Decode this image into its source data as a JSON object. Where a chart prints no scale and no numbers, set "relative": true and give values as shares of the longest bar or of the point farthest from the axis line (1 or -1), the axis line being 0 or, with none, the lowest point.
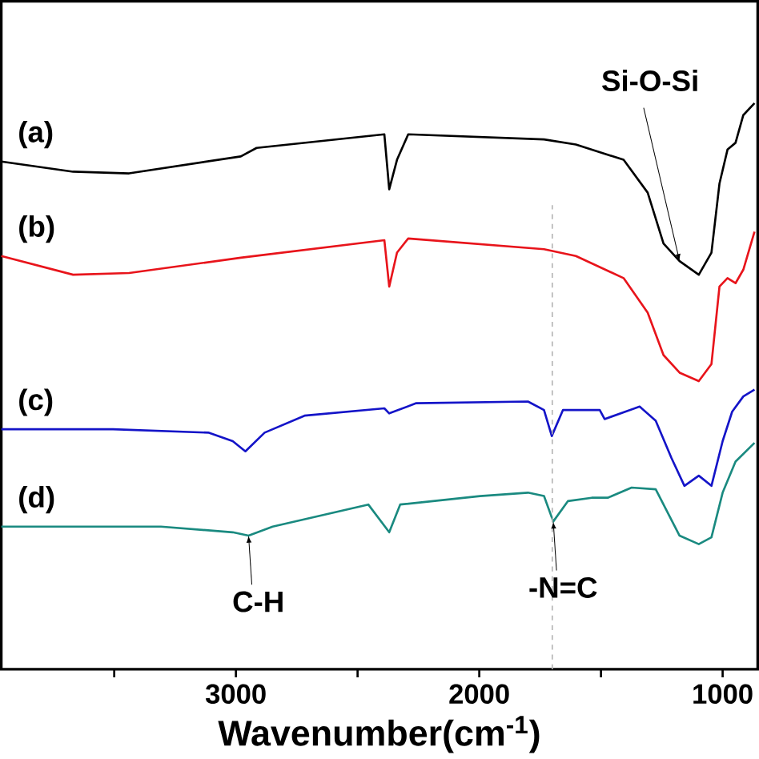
{
  "chart_data": {
    "type": "line",
    "relative": true,
    "xlabel": "Wavenumber(cm$^{-1}$)",
    "xlim": [
      3964,
      856
    ],
    "xticks": [
      3000,
      2000,
      1000,
      {
        "value": 3500,
        "label": null
      },
      {
        "value": 2500,
        "label": null
      },
      {
        "value": 1500,
        "label": null
      }
    ],
    "legend": false,
    "grid": false,
    "marker": "none",
    "line_style": "solid",
    "series": [
      {
        "name": "(a)",
        "color": "#000000",
        "x": [
          3964,
          3669,
          3439,
          2980,
          2915,
          2390,
          2370,
          2338,
          2292,
          1734,
          1603,
          1407,
          1308,
          1243,
          1177,
          1098,
          1046,
          1013,
          980,
          947,
          915,
          869
        ],
        "values": [
          0.897,
          0.879,
          0.876,
          0.906,
          0.921,
          0.945,
          0.848,
          0.9,
          0.945,
          0.936,
          0.927,
          0.9,
          0.842,
          0.752,
          0.721,
          0.697,
          0.736,
          0.858,
          0.918,
          0.93,
          0.979,
          1.0
        ]
      },
      {
        "name": "(b)",
        "color": "#e8141b",
        "x": [
          3964,
          3669,
          3439,
          2980,
          2390,
          2370,
          2338,
          2292,
          1734,
          1603,
          1407,
          1308,
          1243,
          1177,
          1098,
          1046,
          1013,
          980,
          947,
          915,
          869
        ],
        "values": [
          0.73,
          0.697,
          0.7,
          0.727,
          0.758,
          0.676,
          0.736,
          0.761,
          0.742,
          0.73,
          0.691,
          0.63,
          0.555,
          0.524,
          0.509,
          0.539,
          0.676,
          0.691,
          0.682,
          0.706,
          0.773
        ]
      },
      {
        "name": "(c)",
        "color": "#1414c8",
        "x": [
          3964,
          3505,
          3111,
          3013,
          2961,
          2882,
          2718,
          2390,
          2370,
          2259,
          1800,
          1734,
          1702,
          1656,
          1505,
          1485,
          1341,
          1275,
          1210,
          1157,
          1098,
          1046,
          1000,
          961,
          915,
          869
        ],
        "values": [
          0.424,
          0.424,
          0.418,
          0.403,
          0.385,
          0.418,
          0.448,
          0.461,
          0.452,
          0.47,
          0.473,
          0.458,
          0.412,
          0.458,
          0.458,
          0.442,
          0.464,
          0.439,
          0.373,
          0.324,
          0.342,
          0.324,
          0.403,
          0.455,
          0.482,
          0.494
        ]
      },
      {
        "name": "(d)",
        "color": "#1a8a80",
        "x": [
          3964,
          3308,
          3013,
          2948,
          2849,
          2456,
          2370,
          2325,
          1997,
          1800,
          1734,
          1696,
          1636,
          1538,
          1472,
          1374,
          1275,
          1177,
          1098,
          1046,
          1000,
          947,
          869
        ],
        "values": [
          0.252,
          0.252,
          0.242,
          0.236,
          0.252,
          0.291,
          0.242,
          0.291,
          0.306,
          0.312,
          0.306,
          0.261,
          0.297,
          0.303,
          0.303,
          0.321,
          0.318,
          0.236,
          0.221,
          0.233,
          0.312,
          0.367,
          0.4
        ]
      }
    ],
    "ref_lines": [
      {
        "axis": "x",
        "value": 1700,
        "color": "#b4b4b4",
        "line_style": "dashed"
      }
    ],
    "annotations": [
      {
        "text": "Si-O-Si",
        "x": 1177,
        "y": 0.721
      },
      {
        "text": "C-H",
        "x": 2948,
        "y": 0.236
      },
      {
        "text": "-N=C",
        "x": 1696,
        "y": 0.261
      }
    ]
  }
}
